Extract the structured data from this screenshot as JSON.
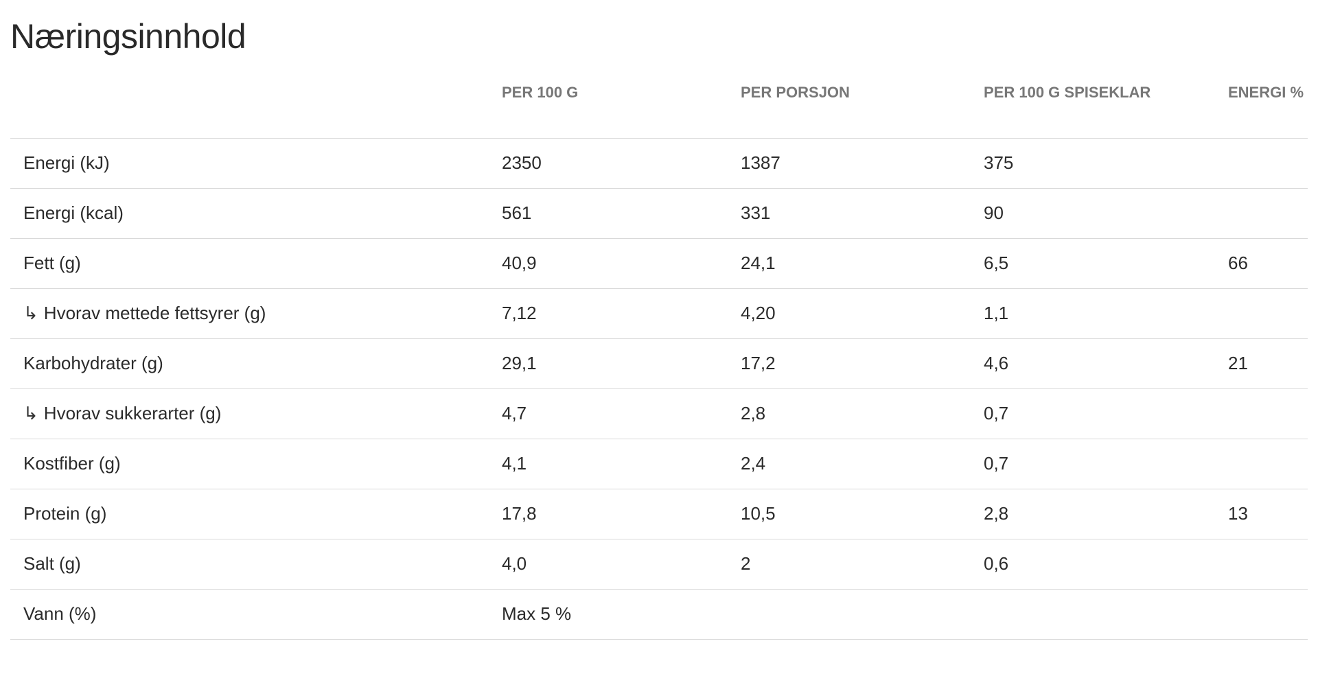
{
  "title": "Næringsinnhold",
  "columns": [
    "",
    "PER 100 G",
    "PER PORSJON",
    "PER 100 G SPISEKLAR",
    "ENERGI %"
  ],
  "sub_arrow": "↳",
  "rows": [
    {
      "name": "Energi (kJ)",
      "sub": false,
      "per100": "2350",
      "perPorsjon": "1387",
      "spiseklar": "375",
      "energiPct": ""
    },
    {
      "name": "Energi (kcal)",
      "sub": false,
      "per100": "561",
      "perPorsjon": "331",
      "spiseklar": "90",
      "energiPct": ""
    },
    {
      "name": "Fett (g)",
      "sub": false,
      "per100": "40,9",
      "perPorsjon": "24,1",
      "spiseklar": "6,5",
      "energiPct": "66"
    },
    {
      "name": "Hvorav mettede fettsyrer (g)",
      "sub": true,
      "per100": "7,12",
      "perPorsjon": "4,20",
      "spiseklar": "1,1",
      "energiPct": ""
    },
    {
      "name": "Karbohydrater (g)",
      "sub": false,
      "per100": "29,1",
      "perPorsjon": "17,2",
      "spiseklar": "4,6",
      "energiPct": "21"
    },
    {
      "name": "Hvorav sukkerarter (g)",
      "sub": true,
      "per100": "4,7",
      "perPorsjon": "2,8",
      "spiseklar": "0,7",
      "energiPct": ""
    },
    {
      "name": "Kostfiber (g)",
      "sub": false,
      "per100": "4,1",
      "perPorsjon": "2,4",
      "spiseklar": "0,7",
      "energiPct": ""
    },
    {
      "name": "Protein (g)",
      "sub": false,
      "per100": "17,8",
      "perPorsjon": "10,5",
      "spiseklar": "2,8",
      "energiPct": "13"
    },
    {
      "name": "Salt (g)",
      "sub": false,
      "per100": "4,0",
      "perPorsjon": "2",
      "spiseklar": "0,6",
      "energiPct": ""
    },
    {
      "name": "Vann (%)",
      "sub": false,
      "per100": "Max 5 %",
      "perPorsjon": "",
      "spiseklar": "",
      "energiPct": ""
    }
  ]
}
